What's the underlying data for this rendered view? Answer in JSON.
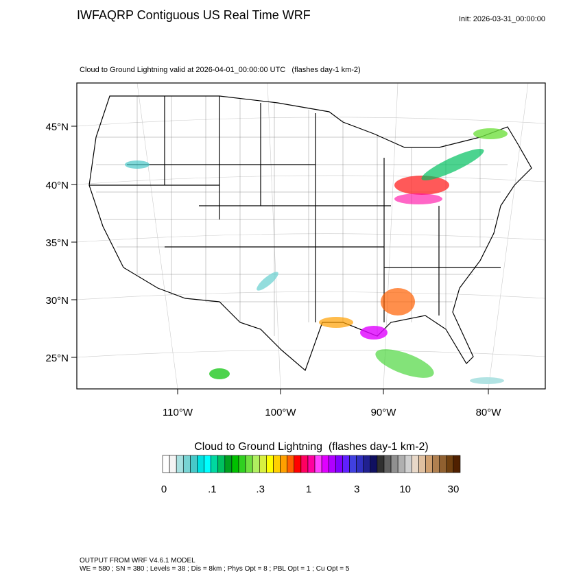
{
  "header": {
    "title": "IWFAQRP Contiguous US Real Time WRF",
    "init": "Init: 2026-03-31_00:00:00"
  },
  "map": {
    "subtitle": "Cloud to Ground Lightning valid at 2026-04-01_00:00:00 UTC   (flashes day-1 km-2)",
    "lat_labels": [
      "45°N",
      "40°N",
      "35°N",
      "30°N",
      "25°N"
    ],
    "lon_labels": [
      "110°W",
      "100°W",
      "90°W",
      "80°W"
    ]
  },
  "colorbar": {
    "title": "Cloud to Ground Lightning  (flashes day-1 km-2)",
    "colors": [
      "#ffffff",
      "#f4f4f4",
      "#a8e0e0",
      "#78d4d4",
      "#48c8c8",
      "#00e0e0",
      "#00ffff",
      "#00d8a0",
      "#00c060",
      "#00a020",
      "#00c000",
      "#30d020",
      "#70e040",
      "#b0f060",
      "#d8f040",
      "#ffff00",
      "#ffd000",
      "#ffa000",
      "#ff6000",
      "#ff0000",
      "#ff0060",
      "#ff00a0",
      "#ff40ff",
      "#e000ff",
      "#b000ff",
      "#8000ff",
      "#6020ff",
      "#4040e0",
      "#3030c0",
      "#202090",
      "#101060",
      "#303030",
      "#606060",
      "#909090",
      "#b0b0b0",
      "#d0d0d0",
      "#e8d8c8",
      "#e0c0a0",
      "#d0a070",
      "#b08050",
      "#906030",
      "#704010",
      "#502000"
    ],
    "labels": [
      "0",
      ".1",
      ".3",
      "1",
      "3",
      "10",
      "30"
    ]
  },
  "footer": {
    "lines": [
      "OUTPUT FROM WRF V4.6.1 MODEL",
      "WE = 580 ; SN = 380 ; Levels = 38 ; Dis = 8km ; Phys Opt = 8 ; PBL Opt = 1 ; Cu Opt = 5"
    ]
  }
}
